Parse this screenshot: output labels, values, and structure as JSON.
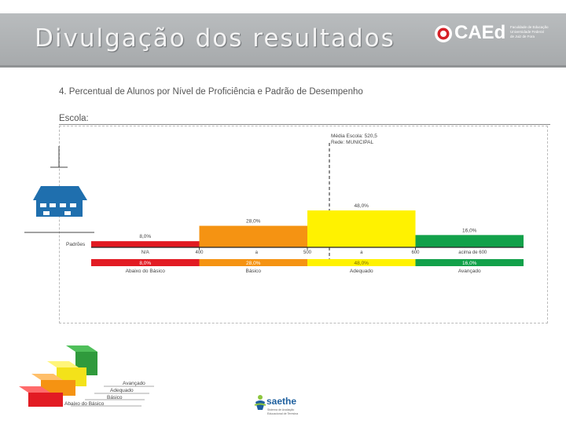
{
  "header": {
    "title": "Divulgação dos resultados"
  },
  "logo": {
    "name": "CAEd",
    "subtitle_lines": [
      "Faculdade de Educação",
      "Universidade Federal",
      "de Juiz de Fora"
    ]
  },
  "section": {
    "title": "4. Percentual de Alunos por Nível de Proficiência e Padrão de Desempenho",
    "school_label": "Escola:"
  },
  "chart_data": {
    "type": "bar",
    "title": "",
    "categories": [
      "Abaixo do Básico",
      "Básico",
      "Adequado",
      "Avançado"
    ],
    "values": [
      8.0,
      28.0,
      48.0,
      16.0
    ],
    "value_labels_top": [
      "8,0%",
      "28,0%",
      "48,0%",
      "16,0%"
    ],
    "value_labels_bottom": [
      "8,0%",
      "28,0%",
      "48,0%",
      "16,0%"
    ],
    "colors": [
      "#e21b23",
      "#f59312",
      "#fff200",
      "#12a14a"
    ],
    "row_label": "Padrões",
    "range_labels": [
      "N/A",
      "400",
      "a",
      "500",
      "a",
      "600",
      "acima de 600"
    ],
    "mean_annotation": [
      "Média Escola: 520,5",
      "Rede: MUNICIPAL"
    ]
  },
  "levels_legend": [
    "Avançado",
    "Adequado",
    "Básico",
    "Abaixo do Básico"
  ],
  "footer_logo": {
    "name": "saethe",
    "subtitle_lines": [
      "Sistema de Avaliação",
      "Educacional de Teresina"
    ]
  }
}
